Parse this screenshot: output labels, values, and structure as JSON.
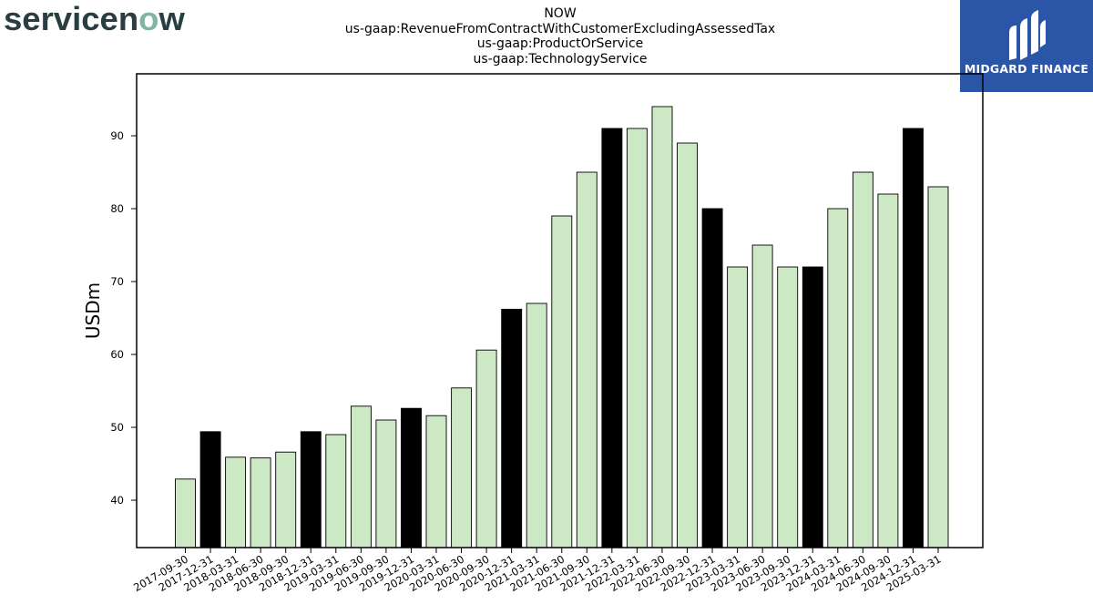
{
  "brand": {
    "logo_text": "servicenow",
    "colors": {
      "text": "#293e40",
      "accent": "#81b5a1"
    }
  },
  "badge": {
    "name": "MIDGARD FINANCE",
    "background": "#2b56a8",
    "icon": "midgard-logo-icon"
  },
  "header": {
    "lines": [
      "NOW",
      "us-gaap:RevenueFromContractWithCustomerExcludingAssessedTax",
      "us-gaap:ProductOrService",
      "us-gaap:TechnologyService"
    ]
  },
  "chart_data": {
    "type": "bar",
    "ylabel": "USDm",
    "xlabel": "",
    "ylim": [
      33.5,
      98.5
    ],
    "yticks": [
      40,
      50,
      60,
      70,
      80,
      90
    ],
    "colors": {
      "default": "#cce8c4",
      "highlight": "#000000",
      "edge": "#000000"
    },
    "categories": [
      "2017-09-30",
      "2017-12-31",
      "2018-03-31",
      "2018-06-30",
      "2018-09-30",
      "2018-12-31",
      "2019-03-31",
      "2019-06-30",
      "2019-09-30",
      "2019-12-31",
      "2020-03-31",
      "2020-06-30",
      "2020-09-30",
      "2020-12-31",
      "2021-03-31",
      "2021-06-30",
      "2021-09-30",
      "2021-12-31",
      "2022-03-31",
      "2022-06-30",
      "2022-09-30",
      "2022-12-31",
      "2023-03-31",
      "2023-06-30",
      "2023-09-30",
      "2023-12-31",
      "2024-03-31",
      "2024-06-30",
      "2024-09-30",
      "2024-12-31",
      "2025-03-31"
    ],
    "values": [
      42.9,
      49.4,
      45.9,
      45.8,
      46.6,
      49.4,
      49.0,
      52.9,
      51.0,
      52.6,
      51.6,
      55.4,
      60.6,
      66.2,
      67.0,
      79.0,
      85.0,
      91.0,
      91.0,
      94.0,
      89.0,
      80.0,
      72.0,
      75.0,
      72.0,
      72.0,
      80.0,
      85.0,
      82.0,
      91.0,
      83.0
    ],
    "highlight": [
      false,
      true,
      false,
      false,
      false,
      true,
      false,
      false,
      false,
      true,
      false,
      false,
      false,
      true,
      false,
      false,
      false,
      true,
      false,
      false,
      false,
      true,
      false,
      false,
      false,
      true,
      false,
      false,
      false,
      true,
      false
    ]
  }
}
